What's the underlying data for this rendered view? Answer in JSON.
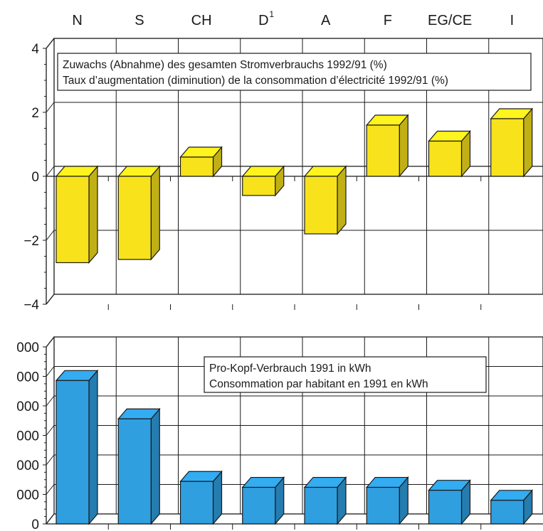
{
  "categories": [
    "N",
    "S",
    "CH",
    "D",
    "A",
    "F",
    "EG/CE",
    "I"
  ],
  "footnote_marks": {
    "D": "1"
  },
  "colors": {
    "top_bars": "#f7e21b",
    "bottom_bars": "#2f9fe0",
    "outline": "#1a1a1a"
  },
  "chart_data": [
    {
      "type": "bar",
      "style": "3d",
      "title_lines": [
        "Zuwachs (Abnahme) des gesamten Stromverbrauchs 1992/91 (%)",
        "Taux d’augmentation (diminution) de la consommation d’électricité 1992/91 (%)"
      ],
      "categories": [
        "N",
        "S",
        "CH",
        "D",
        "A",
        "F",
        "EG/CE",
        "I"
      ],
      "values": [
        -2.7,
        -2.6,
        0.6,
        -0.6,
        -1.8,
        1.6,
        1.1,
        1.8
      ],
      "ylim": [
        -4,
        4
      ],
      "yticks": [
        4,
        2,
        0,
        -2,
        -4
      ],
      "ytick_labels": [
        "4",
        "2",
        "0",
        "−2",
        "−4"
      ],
      "grid": true
    },
    {
      "type": "bar",
      "style": "3d",
      "title_lines": [
        "Pro-Kopf-Verbrauch 1991 in kWh",
        "Consommation par habitant en 1991 en kWh"
      ],
      "categories": [
        "N",
        "S",
        "CH",
        "D",
        "A",
        "F",
        "EG/CE",
        "I"
      ],
      "values": [
        24300,
        17800,
        7200,
        6200,
        6200,
        6200,
        5700,
        4000
      ],
      "ylim": [
        0,
        30000
      ],
      "yticks": [
        30000,
        25000,
        20000,
        15000,
        10000,
        5000,
        0
      ],
      "ytick_labels": [
        "000",
        "000",
        "000",
        "000",
        "000",
        "000",
        "0"
      ],
      "grid": true
    }
  ]
}
